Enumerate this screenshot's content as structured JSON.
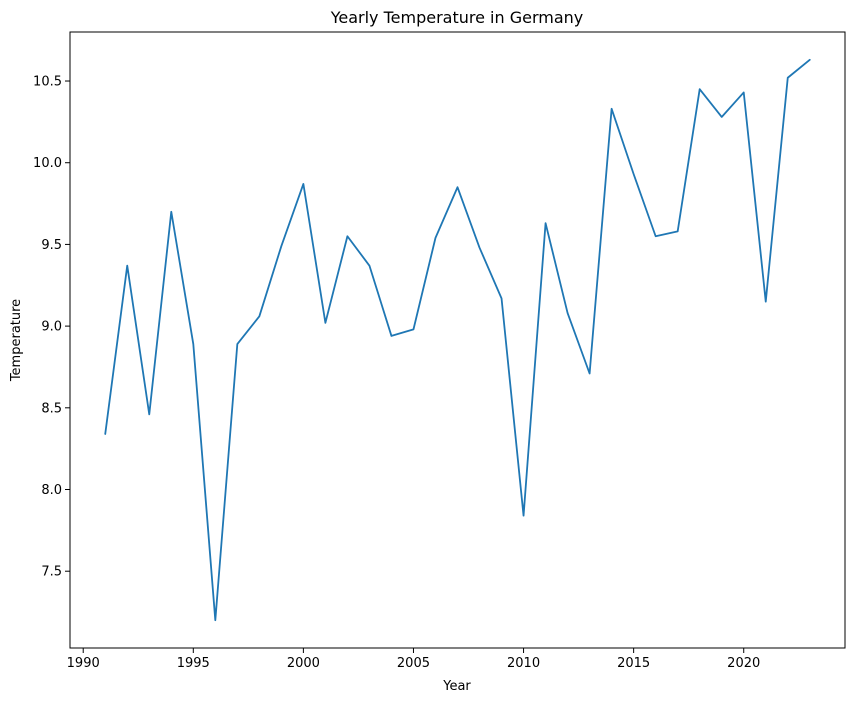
{
  "chart_data": {
    "type": "line",
    "title": "Yearly Temperature in Germany",
    "xlabel": "Year",
    "ylabel": "Temperature",
    "xlim": [
      1989.4,
      2024.6
    ],
    "ylim": [
      7.03,
      10.8
    ],
    "xticks": [
      1990,
      1995,
      2000,
      2005,
      2010,
      2015,
      2020
    ],
    "xtick_labels": [
      "1990",
      "1995",
      "2000",
      "2005",
      "2010",
      "2015",
      "2020"
    ],
    "yticks": [
      7.5,
      8.0,
      8.5,
      9.0,
      9.5,
      10.0,
      10.5
    ],
    "ytick_labels": [
      "7.5",
      "8.0",
      "8.5",
      "9.0",
      "9.5",
      "10.0",
      "10.5"
    ],
    "grid": false,
    "series": [
      {
        "color": "#1f77b4",
        "x": [
          1991,
          1992,
          1993,
          1994,
          1995,
          1996,
          1997,
          1998,
          1999,
          2000,
          2001,
          2002,
          2003,
          2004,
          2005,
          2006,
          2007,
          2008,
          2009,
          2010,
          2011,
          2012,
          2013,
          2014,
          2015,
          2016,
          2017,
          2018,
          2019,
          2020,
          2021,
          2022,
          2023
        ],
        "y": [
          8.34,
          9.37,
          8.46,
          9.7,
          8.89,
          7.2,
          8.89,
          9.06,
          9.49,
          9.87,
          9.02,
          9.55,
          9.37,
          8.94,
          8.98,
          9.54,
          9.85,
          9.48,
          9.17,
          7.84,
          9.63,
          9.08,
          8.71,
          10.33,
          9.93,
          9.55,
          9.58,
          10.45,
          10.28,
          10.43,
          9.15,
          10.52,
          10.63
        ]
      }
    ]
  }
}
